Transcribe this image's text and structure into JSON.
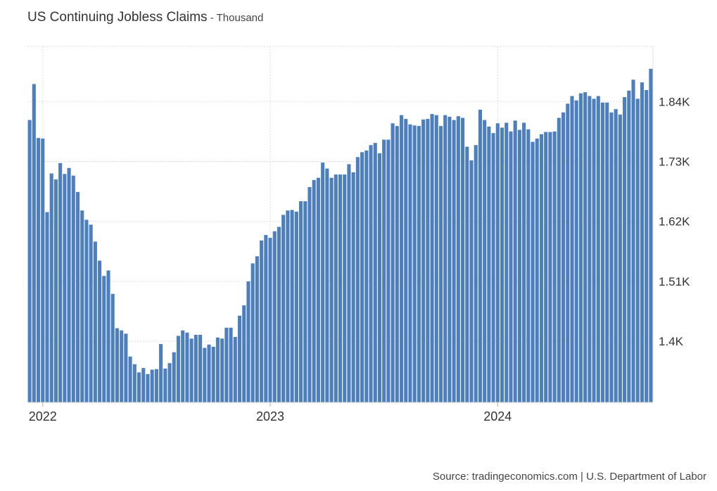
{
  "header": {
    "title": "US Continuing Jobless Claims",
    "separator": " - ",
    "unit": "Thousand"
  },
  "footer": {
    "source": "Source: tradingeconomics.com | U.S. Department of Labor"
  },
  "colors": {
    "bar": "#4d7fbf",
    "grid": "#dddddd",
    "axis_text": "#333333",
    "background": "#ffffff"
  },
  "chart_data": {
    "type": "bar",
    "title": "US Continuing Jobless Claims",
    "subtitle": "Thousand",
    "xlabel": "",
    "ylabel": "",
    "unit": "Thousand",
    "grid": true,
    "y_axis_side": "right",
    "ylim": [
      1288,
      1941
    ],
    "yticks": [
      1400,
      1510,
      1620,
      1730,
      1840
    ],
    "ytick_labels": [
      "1.4K",
      "1.51K",
      "1.62K",
      "1.73K",
      "1.84K"
    ],
    "year_labels": [
      {
        "label": "2022",
        "index": 3
      },
      {
        "label": "2023",
        "index": 55
      },
      {
        "label": "2024",
        "index": 107
      }
    ],
    "series": [
      {
        "name": "Continuing Jobless Claims",
        "values": [
          1806,
          1872,
          1773,
          1772,
          1637,
          1708,
          1697,
          1727,
          1707,
          1718,
          1704,
          1674,
          1640,
          1623,
          1614,
          1583,
          1548,
          1520,
          1530,
          1487,
          1424,
          1420,
          1414,
          1372,
          1358,
          1343,
          1351,
          1340,
          1348,
          1349,
          1395,
          1350,
          1360,
          1380,
          1410,
          1420,
          1416,
          1405,
          1412,
          1412,
          1388,
          1394,
          1390,
          1407,
          1405,
          1425,
          1425,
          1408,
          1447,
          1466,
          1510,
          1543,
          1556,
          1585,
          1595,
          1590,
          1602,
          1610,
          1632,
          1640,
          1641,
          1638,
          1657,
          1657,
          1683,
          1696,
          1700,
          1728,
          1717,
          1700,
          1706,
          1706,
          1706,
          1725,
          1710,
          1738,
          1747,
          1750,
          1760,
          1764,
          1745,
          1770,
          1770,
          1800,
          1795,
          1815,
          1808,
          1798,
          1796,
          1795,
          1807,
          1808,
          1817,
          1815,
          1795,
          1815,
          1812,
          1806,
          1813,
          1810,
          1757,
          1732,
          1760,
          1825,
          1806,
          1794,
          1782,
          1800,
          1792,
          1801,
          1785,
          1805,
          1788,
          1801,
          1789,
          1766,
          1772,
          1780,
          1784,
          1784,
          1785,
          1810,
          1820,
          1836,
          1850,
          1842,
          1855,
          1857,
          1850,
          1845,
          1850,
          1838,
          1838,
          1820,
          1826,
          1816,
          1848,
          1860,
          1880,
          1845,
          1875,
          1861,
          1900
        ]
      }
    ]
  }
}
